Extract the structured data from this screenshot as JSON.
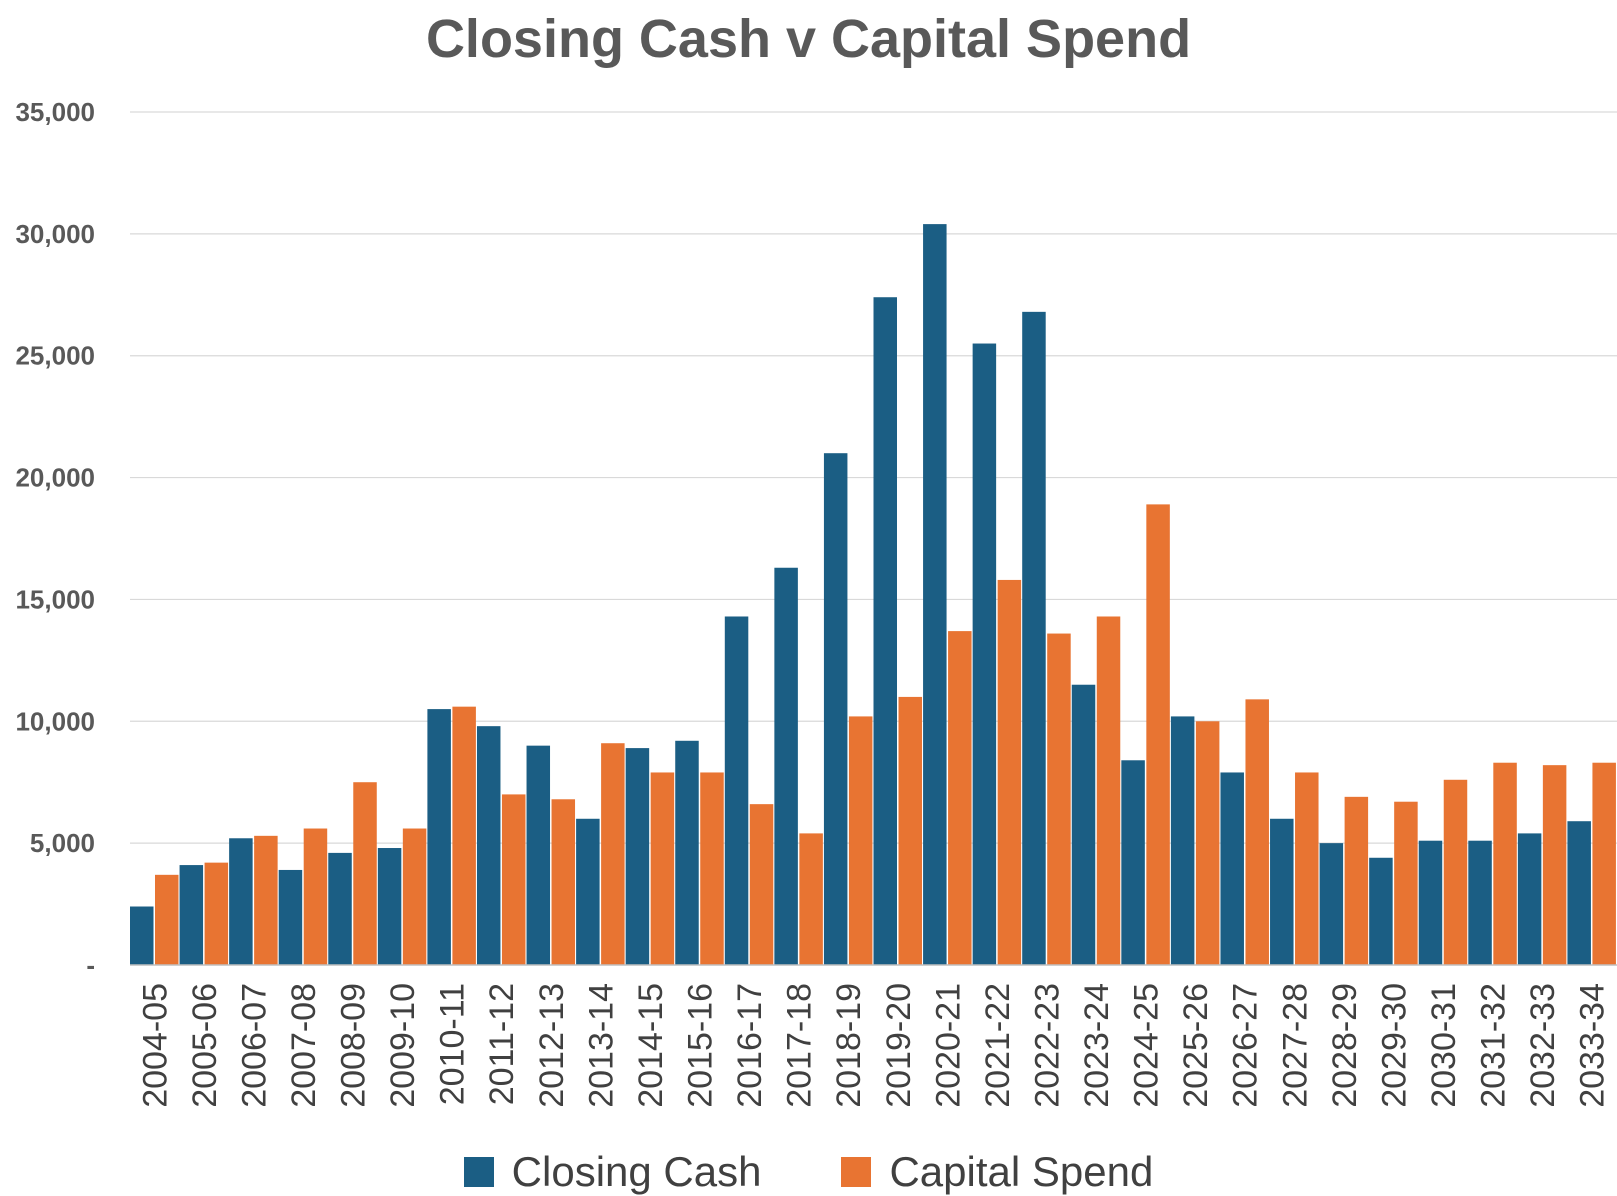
{
  "chart_data": {
    "type": "bar",
    "title": "Closing Cash v Capital Spend",
    "xlabel": "",
    "ylabel": "",
    "ylim": [
      0,
      35000
    ],
    "yticks": [
      {
        "value": 0,
        "label": "-"
      },
      {
        "value": 5000,
        "label": "5,000"
      },
      {
        "value": 10000,
        "label": "10,000"
      },
      {
        "value": 15000,
        "label": "15,000"
      },
      {
        "value": 20000,
        "label": "20,000"
      },
      {
        "value": 25000,
        "label": "25,000"
      },
      {
        "value": 30000,
        "label": "30,000"
      },
      {
        "value": 35000,
        "label": "35,000"
      }
    ],
    "grid": true,
    "legend_position": "bottom",
    "categories": [
      "2004-05",
      "2005-06",
      "2006-07",
      "2007-08",
      "2008-09",
      "2009-10",
      "2010-11",
      "2011-12",
      "2012-13",
      "2013-14",
      "2014-15",
      "2015-16",
      "2016-17",
      "2017-18",
      "2018-19",
      "2019-20",
      "2020-21",
      "2021-22",
      "2022-23",
      "2023-24",
      "2024-25",
      "2025-26",
      "2026-27",
      "2027-28",
      "2028-29",
      "2029-30",
      "2030-31",
      "2031-32",
      "2032-33",
      "2033-34"
    ],
    "series": [
      {
        "name": "Closing Cash",
        "color": "#1b5e84",
        "values": [
          2400,
          4100,
          5200,
          3900,
          4600,
          4800,
          10500,
          9800,
          9000,
          6000,
          8900,
          9200,
          14300,
          16300,
          21000,
          27400,
          30400,
          25500,
          26800,
          11500,
          8400,
          10200,
          7900,
          6000,
          5000,
          4400,
          5100,
          5100,
          5400,
          5900
        ]
      },
      {
        "name": "Capital Spend",
        "color": "#e87432",
        "values": [
          3700,
          4200,
          5300,
          5600,
          7500,
          5600,
          10600,
          7000,
          6800,
          9100,
          7900,
          7900,
          6600,
          5400,
          10200,
          11000,
          13700,
          15800,
          13600,
          14300,
          18900,
          10000,
          10900,
          7900,
          6900,
          6700,
          7600,
          8300,
          8200,
          8300
        ]
      }
    ]
  }
}
